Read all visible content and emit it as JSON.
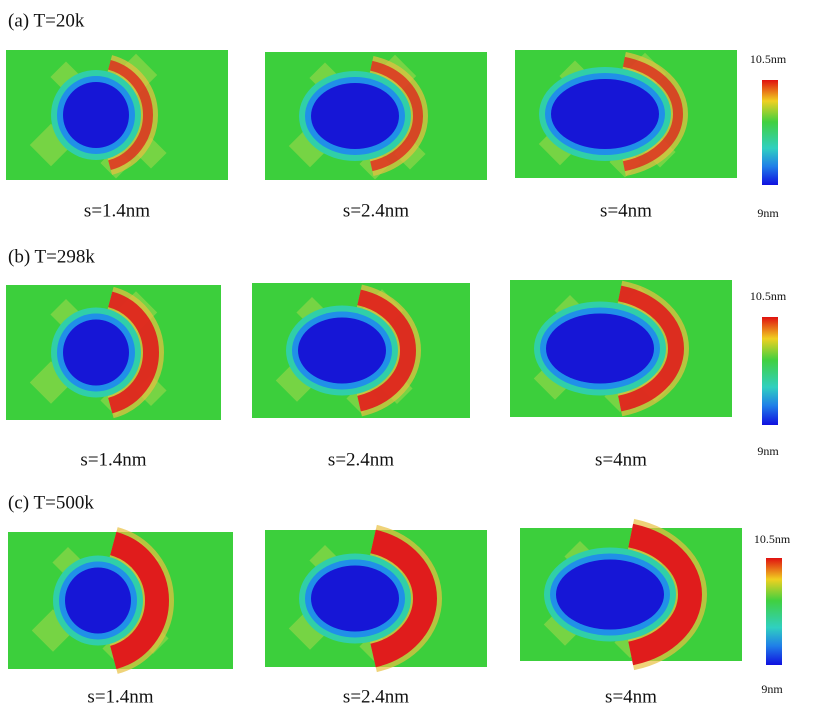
{
  "rows": [
    {
      "label": "(a) T=20k",
      "panels": [
        {
          "caption": "s=1.4nm"
        },
        {
          "caption": "s=2.4nm"
        },
        {
          "caption": "s=4nm"
        }
      ],
      "colorbar": {
        "max": "10.5nm",
        "min": "9nm"
      }
    },
    {
      "label": "(b) T=298k",
      "panels": [
        {
          "caption": "s=1.4nm"
        },
        {
          "caption": "s=2.4nm"
        },
        {
          "caption": "s=4nm"
        }
      ],
      "colorbar": {
        "max": "10.5nm",
        "min": "9nm"
      }
    },
    {
      "label": "(c) T=500k",
      "panels": [
        {
          "caption": "s=1.4nm"
        },
        {
          "caption": "s=2.4nm"
        },
        {
          "caption": "s=4nm"
        }
      ],
      "colorbar": {
        "max": "10.5nm",
        "min": "9nm"
      }
    }
  ]
}
